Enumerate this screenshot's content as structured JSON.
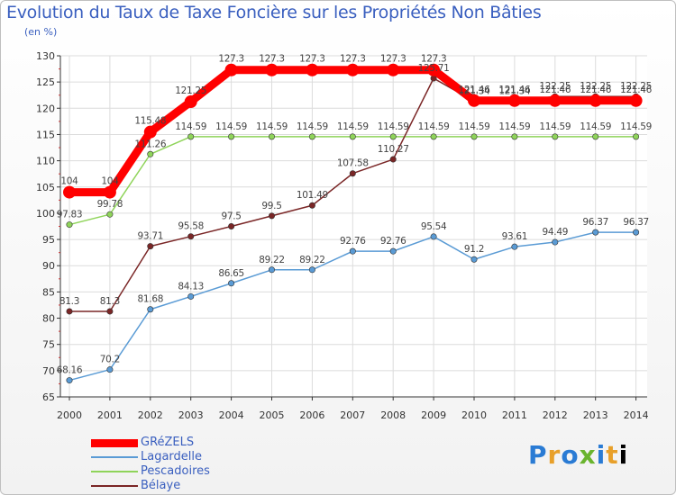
{
  "title": "Evolution du Taux de Taxe Foncière sur les Propriétés Non Bâties",
  "subtitle": "(en %)",
  "logo": "Proxiti",
  "chart_data": {
    "type": "line",
    "title": "Evolution du Taux de Taxe Foncière sur les Propriétés Non Bâties",
    "ylabel": "(en %)",
    "xlabel": "",
    "ylim": [
      65,
      130
    ],
    "yticks": [
      65,
      70,
      75,
      80,
      85,
      90,
      95,
      100,
      105,
      110,
      115,
      120,
      125,
      130
    ],
    "categories": [
      "2000",
      "2001",
      "2002",
      "2003",
      "2004",
      "2005",
      "2006",
      "2007",
      "2008",
      "2009",
      "2010",
      "2011",
      "2012",
      "2013",
      "2014"
    ],
    "series": [
      {
        "name": "Lagardelle",
        "color": "#5a9bd5",
        "values": [
          68.16,
          70.2,
          81.68,
          84.13,
          86.65,
          89.22,
          89.22,
          92.76,
          92.76,
          95.54,
          91.2,
          93.61,
          94.49,
          96.37,
          96.37
        ],
        "labels": [
          "68.16",
          "70.2",
          "81.68",
          "84.13",
          "86.65",
          "89.22",
          "89.22",
          "92.76",
          "92.76",
          "95.54",
          "91.2",
          "93.61",
          "94.49",
          "96.37",
          "96.37"
        ]
      },
      {
        "name": "Pescadoires",
        "color": "#8fd45a",
        "values": [
          97.83,
          99.78,
          111.26,
          114.59,
          114.59,
          114.59,
          114.59,
          114.59,
          114.59,
          114.59,
          114.59,
          114.59,
          114.59,
          114.59,
          114.59
        ],
        "labels": [
          "97.83",
          "99.78",
          "111.26",
          "114.59",
          "114.59",
          "114.59",
          "114.59",
          "114.59",
          "114.59",
          "114.59",
          "114.59",
          "114.59",
          "114.59",
          "114.59",
          "114.59"
        ]
      },
      {
        "name": "Bélaye",
        "color": "#7a2626",
        "values": [
          81.3,
          81.3,
          93.71,
          95.58,
          97.5,
          99.5,
          101.49,
          107.58,
          110.27,
          125.71,
          121.34,
          121.34,
          122.25,
          122.25,
          122.25
        ],
        "labels": [
          "81.3",
          "81.3",
          "93.71",
          "95.58",
          "97.5",
          "99.5",
          "101.49",
          "107.58",
          "110.27",
          "125.71",
          "121.34",
          "121.34",
          "122.25",
          "122.25",
          "122.25"
        ]
      },
      {
        "name": "GRéZELS",
        "color": "#ff0000",
        "values": [
          104,
          104,
          115.48,
          121.25,
          127.3,
          127.3,
          127.3,
          127.3,
          127.3,
          127.3,
          121.46,
          121.46,
          121.46,
          121.46,
          121.46
        ],
        "labels": [
          "104",
          "104",
          "115.48",
          "121.25",
          "127.3",
          "127.3",
          "127.3",
          "127.3",
          "127.3",
          "127.3",
          "121.46",
          "121.46",
          "121.46",
          "121.46",
          "121.46"
        ]
      }
    ],
    "legend": [
      "GRéZELS",
      "Lagardelle",
      "Pescadoires",
      "Bélaye"
    ]
  }
}
